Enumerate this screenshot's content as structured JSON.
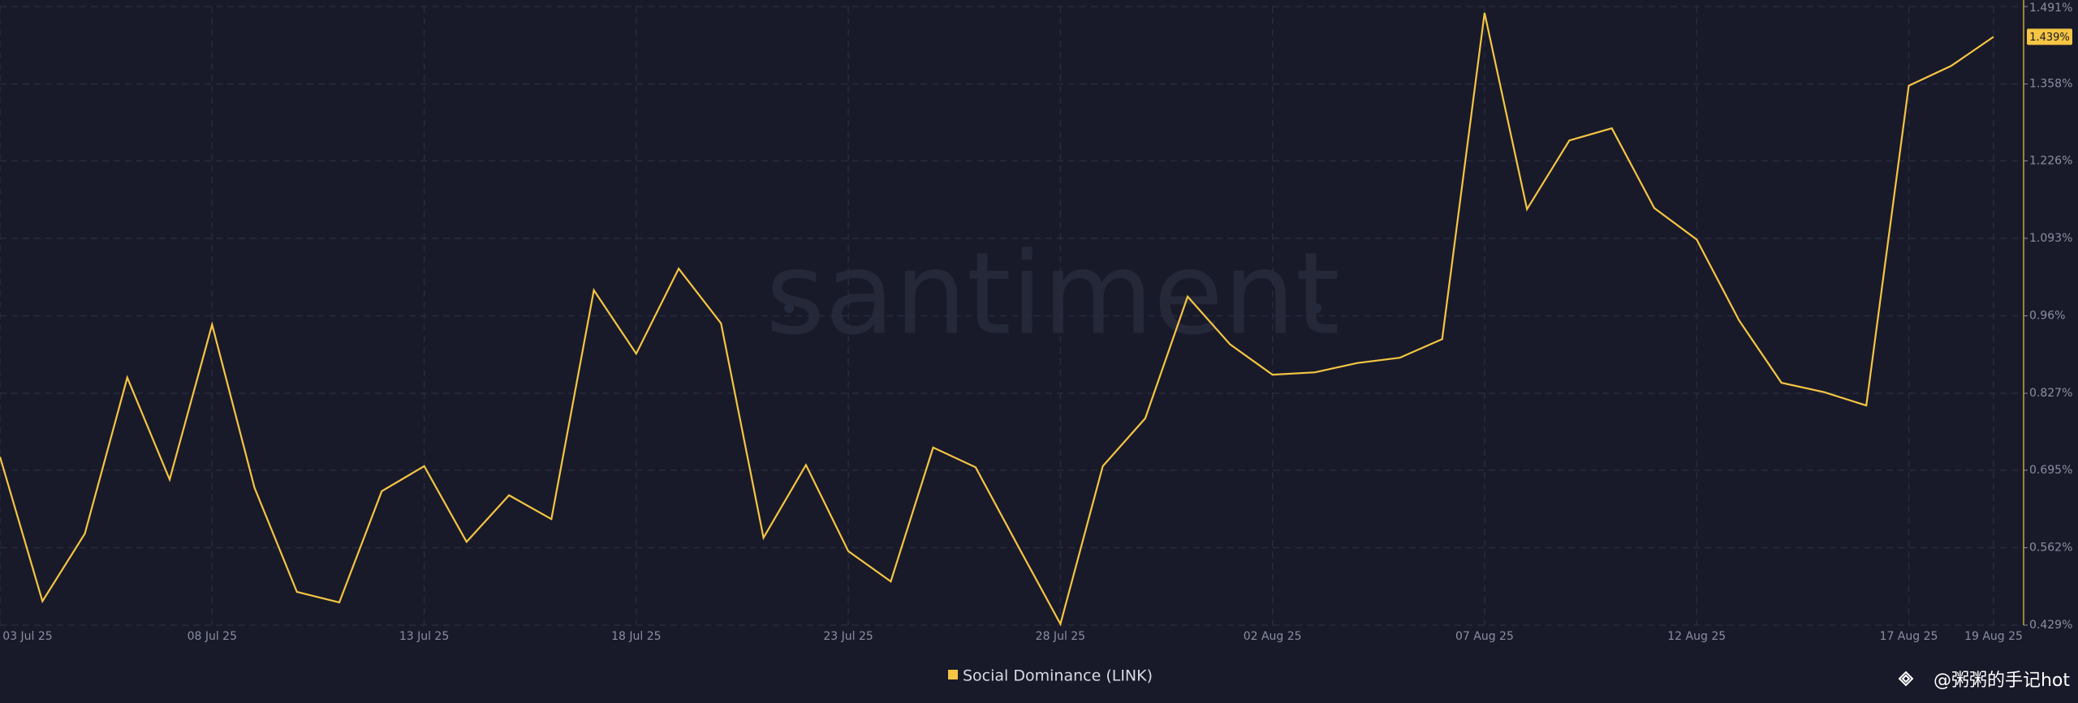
{
  "chart_data": {
    "type": "line",
    "watermark": "santiment",
    "categories": [
      "03 Jul 25",
      null,
      null,
      null,
      null,
      "08 Jul 25",
      null,
      null,
      null,
      null,
      "13 Jul 25",
      null,
      null,
      null,
      null,
      "18 Jul 25",
      null,
      null,
      null,
      null,
      "23 Jul 25",
      null,
      null,
      null,
      null,
      "28 Jul 25",
      null,
      null,
      null,
      null,
      "02 Aug 25",
      null,
      null,
      null,
      null,
      "07 Aug 25",
      null,
      null,
      null,
      null,
      "12 Aug 25",
      null,
      null,
      null,
      null,
      "17 Aug 25",
      null,
      "19 Aug 25"
    ],
    "series": [
      {
        "name": "Social Dominance (LINK)",
        "color": "#f5c543",
        "values": [
          0.718,
          0.47,
          0.586,
          0.854,
          0.679,
          0.945,
          0.665,
          0.486,
          0.468,
          0.659,
          0.702,
          0.572,
          0.652,
          0.611,
          1.004,
          0.895,
          1.041,
          0.947,
          0.579,
          0.704,
          0.556,
          0.504,
          0.734,
          0.7,
          0.565,
          0.431,
          0.702,
          0.784,
          0.993,
          0.911,
          0.859,
          0.863,
          0.879,
          0.888,
          0.92,
          1.48,
          1.143,
          1.261,
          1.282,
          1.145,
          1.091,
          0.952,
          0.845,
          0.829,
          0.806,
          1.355,
          1.389,
          1.439
        ],
        "value_labels": [
          null,
          null,
          null,
          null,
          null,
          null,
          null,
          null,
          null,
          null,
          null,
          null,
          null,
          null,
          null,
          null,
          null,
          null,
          null,
          null,
          null,
          null,
          null,
          null,
          null,
          null,
          null,
          null,
          null,
          null,
          null,
          null,
          null,
          null,
          null,
          null,
          null,
          null,
          null,
          null,
          null,
          null,
          null,
          null,
          null,
          null,
          null,
          "1.439%"
        ]
      }
    ],
    "ylim": [
      0.429,
      1.491
    ],
    "yticks": [
      {
        "value": 0.429,
        "label": "0.429%"
      },
      {
        "value": 0.562,
        "label": "0.562%"
      },
      {
        "value": 0.695,
        "label": "0.695%"
      },
      {
        "value": 0.827,
        "label": "0.827%"
      },
      {
        "value": 0.96,
        "label": "0.96%"
      },
      {
        "value": 1.093,
        "label": "1.093%"
      },
      {
        "value": 1.226,
        "label": "1.226%"
      },
      {
        "value": 1.358,
        "label": "1.358%"
      },
      {
        "value": 1.491,
        "label": "1.491%"
      }
    ],
    "grid": true,
    "legend": "bottom"
  },
  "footer": "@粥粥的手记hot"
}
